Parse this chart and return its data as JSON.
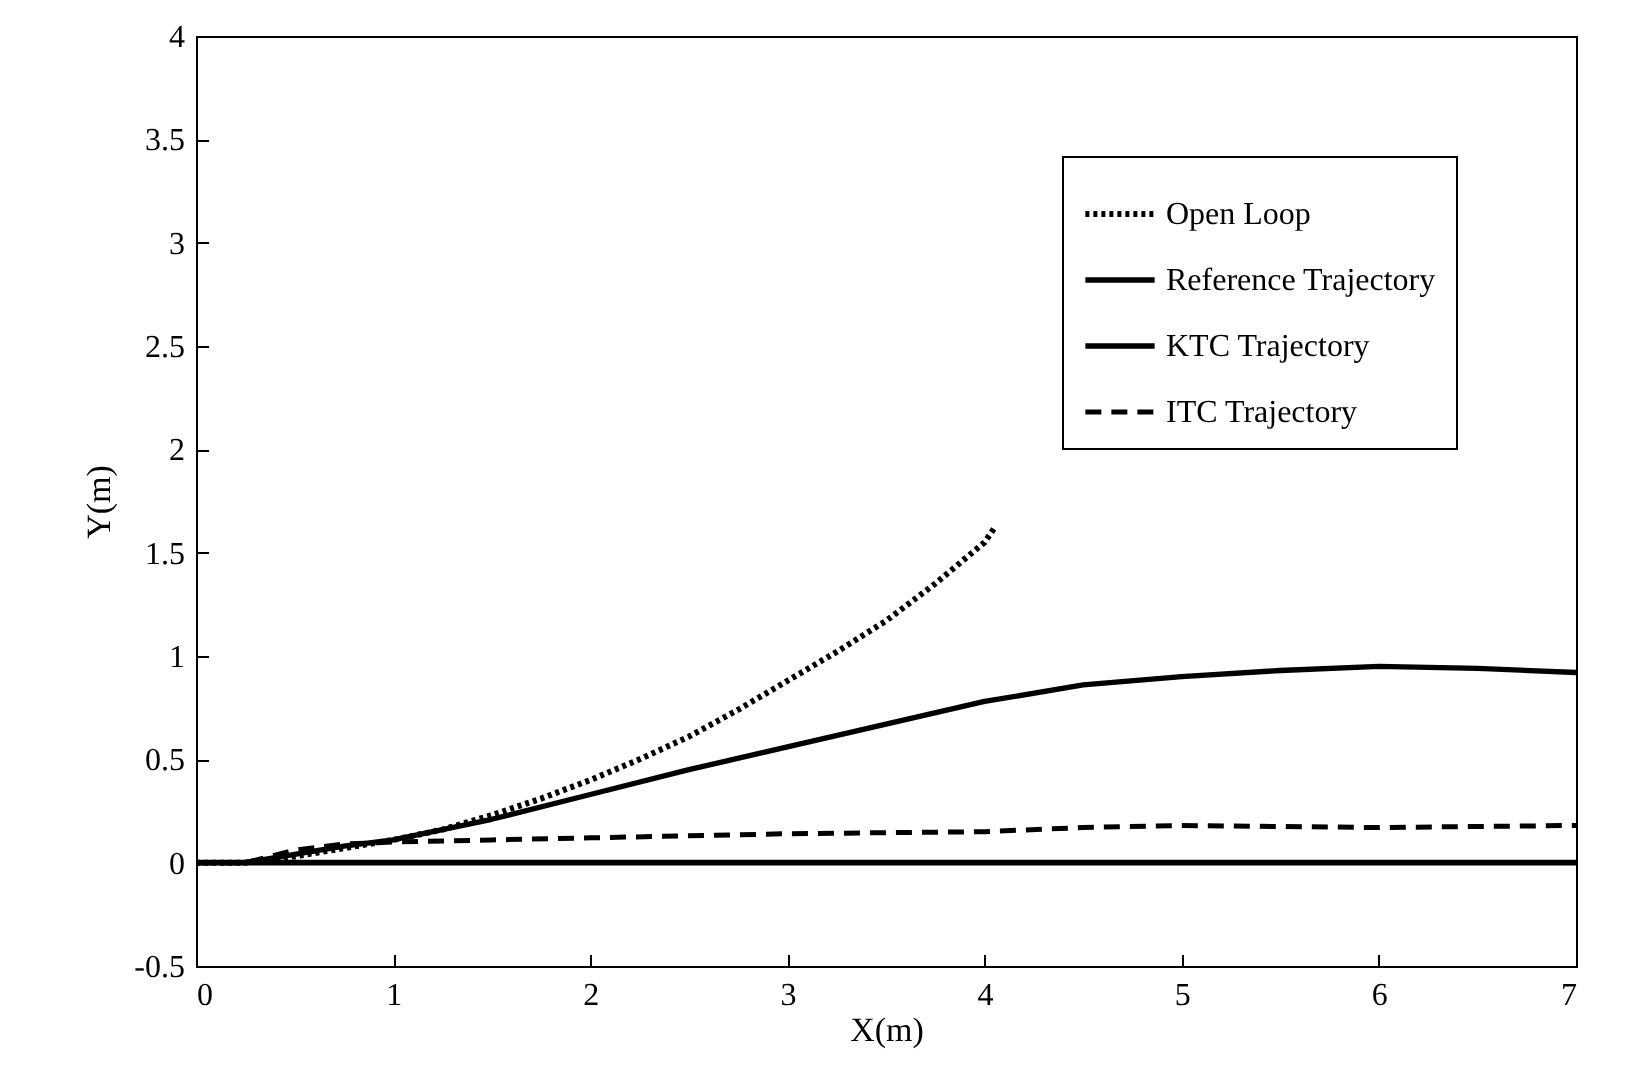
{
  "chart_data": {
    "type": "line",
    "xlabel": "X(m)",
    "ylabel": "Y(m)",
    "xlim": [
      0,
      7
    ],
    "ylim": [
      -0.5,
      4
    ],
    "xticks": [
      0,
      1,
      2,
      3,
      4,
      5,
      6,
      7
    ],
    "yticks": [
      -0.5,
      0,
      0.5,
      1,
      1.5,
      2,
      2.5,
      3,
      3.5,
      4
    ],
    "grid": false,
    "legend": "top right",
    "marker": "none",
    "series": [
      {
        "name": "Open Loop",
        "color": "#000000",
        "line_style": "dotted",
        "x": [
          0,
          0.25,
          0.5,
          0.75,
          1,
          1.25,
          1.5,
          1.75,
          2,
          2.25,
          2.5,
          2.75,
          3,
          3.25,
          3.5,
          3.75,
          4,
          4.05
        ],
        "values": [
          0,
          0,
          0.03,
          0.07,
          0.11,
          0.16,
          0.23,
          0.31,
          0.4,
          0.5,
          0.61,
          0.74,
          0.88,
          1.02,
          1.17,
          1.35,
          1.55,
          1.62
        ]
      },
      {
        "name": "Reference Trajectory",
        "color": "#000000",
        "line_style": "solid",
        "x": [
          0,
          7
        ],
        "values": [
          0,
          0
        ]
      },
      {
        "name": "KTC Trajectory",
        "color": "#000000",
        "line_style": "solid",
        "x": [
          0,
          0.25,
          0.5,
          0.75,
          1,
          1.5,
          2,
          2.5,
          3,
          3.5,
          4,
          4.5,
          5,
          5.5,
          6,
          6.5,
          7
        ],
        "values": [
          0,
          0,
          0.04,
          0.08,
          0.11,
          0.21,
          0.33,
          0.45,
          0.56,
          0.67,
          0.78,
          0.86,
          0.9,
          0.93,
          0.95,
          0.94,
          0.92
        ]
      },
      {
        "name": "ITC Trajectory",
        "color": "#000000",
        "line_style": "dashed",
        "x": [
          0,
          0.25,
          0.5,
          0.75,
          1,
          1.5,
          2,
          3,
          4,
          4.5,
          5,
          6,
          7
        ],
        "values": [
          0,
          0,
          0.06,
          0.09,
          0.1,
          0.11,
          0.12,
          0.14,
          0.15,
          0.17,
          0.18,
          0.17,
          0.18
        ]
      }
    ]
  }
}
